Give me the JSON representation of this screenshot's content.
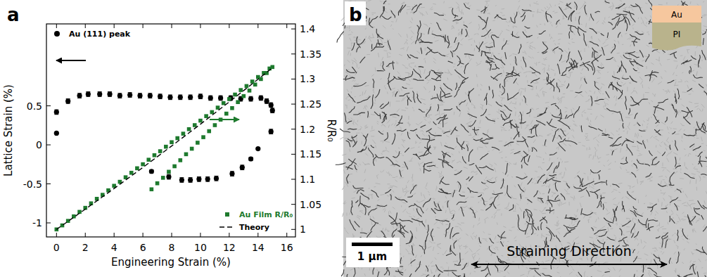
{
  "chart_data": {
    "type": "scatter",
    "title": "a",
    "xlabel": "Engineering Strain (%)",
    "ylabel": "Lattice Strain (%)",
    "y2label": "R/R₀",
    "xlim": [
      -0.7,
      16.6
    ],
    "xticks": [
      0,
      2,
      4,
      6,
      8,
      10,
      12,
      14,
      16
    ],
    "ylim": [
      -1.18,
      1.55
    ],
    "yticks": [
      -1,
      -0.5,
      0,
      0.5
    ],
    "y2lim": [
      0.985,
      1.41
    ],
    "y2ticks": [
      1,
      1.05,
      1.1,
      1.15,
      1.2,
      1.25,
      1.3,
      1.35,
      1.4
    ],
    "legend": "lower right",
    "series": [
      {
        "name": "Au (111) peak",
        "type": "scatter",
        "marker": "circle",
        "color": "#000000",
        "x": [
          0,
          0,
          0.8,
          1.6,
          2.2,
          3.0,
          3.7,
          4.4,
          5.1,
          5.8,
          6.5,
          7.2,
          7.9,
          8.6,
          9.3,
          10.0,
          10.7,
          11.4,
          12.1,
          12.8,
          13.5,
          14.2,
          14.6,
          14.9,
          15.0,
          14.9,
          14.0,
          13.5,
          12.9,
          12.2,
          11.1,
          10.5,
          9.9,
          9.3,
          8.7,
          7.8,
          6.6
        ],
        "values": [
          0.15,
          0.42,
          0.56,
          0.63,
          0.65,
          0.65,
          0.65,
          0.63,
          0.64,
          0.63,
          0.63,
          0.62,
          0.61,
          0.61,
          0.61,
          0.62,
          0.6,
          0.6,
          0.6,
          0.59,
          0.59,
          0.6,
          0.56,
          0.51,
          0.44,
          0.17,
          -0.05,
          -0.18,
          -0.29,
          -0.37,
          -0.43,
          -0.44,
          -0.44,
          -0.45,
          -0.45,
          -0.41,
          -0.34
        ],
        "errors": [
          0.01,
          0.03,
          0.03,
          0.03,
          0.03,
          0.03,
          0.03,
          0.03,
          0.03,
          0.03,
          0.03,
          0.03,
          0.03,
          0.03,
          0.03,
          0.03,
          0.03,
          0.03,
          0.03,
          0.03,
          0.03,
          0.03,
          0.03,
          0.03,
          0.03,
          0.03,
          0.01,
          0.02,
          0.03,
          0.03,
          0.03,
          0.03,
          0.03,
          0.03,
          0.03,
          0.03,
          0.02
        ]
      },
      {
        "name": "Au Film R/R₀",
        "type": "scatter",
        "marker": "square",
        "color": "#1e7a2e",
        "axis": "y2",
        "x": [
          0,
          0.4,
          0.8,
          1.2,
          1.6,
          2,
          2.4,
          2.8,
          3.2,
          3.6,
          4,
          4.4,
          4.8,
          5.2,
          5.6,
          6,
          6.4,
          6.8,
          7.2,
          7.6,
          8,
          8.4,
          8.8,
          9.2,
          9.6,
          10,
          10.4,
          10.8,
          11.2,
          11.6,
          12,
          12.4,
          12.8,
          13.2,
          13.6,
          14,
          14.4,
          14.8,
          15,
          14.6,
          14.2,
          13.8,
          13.4,
          13.0,
          12.6,
          12.2,
          11.8,
          11.4,
          11.0,
          10.6,
          10.2,
          9.8,
          9.4,
          9.0,
          8.6,
          8.2,
          7.8,
          7.4,
          7.0,
          6.6
        ],
        "values": [
          1.0,
          1.008,
          1.017,
          1.026,
          1.035,
          1.043,
          1.052,
          1.061,
          1.069,
          1.078,
          1.087,
          1.095,
          1.104,
          1.113,
          1.122,
          1.13,
          1.139,
          1.148,
          1.156,
          1.165,
          1.174,
          1.182,
          1.191,
          1.2,
          1.208,
          1.217,
          1.226,
          1.234,
          1.243,
          1.252,
          1.26,
          1.269,
          1.278,
          1.286,
          1.295,
          1.304,
          1.312,
          1.321,
          1.324,
          1.312,
          1.3,
          1.289,
          1.277,
          1.266,
          1.254,
          1.242,
          1.231,
          1.219,
          1.208,
          1.196,
          1.184,
          1.173,
          1.161,
          1.15,
          1.138,
          1.126,
          1.115,
          1.103,
          1.092,
          1.08
        ]
      },
      {
        "name": "Theory",
        "type": "line",
        "line_style": "dashed",
        "color": "#000000",
        "axis": "y2",
        "x": [
          0,
          2,
          4,
          6,
          8,
          10,
          12,
          14,
          15
        ],
        "values": [
          1,
          1.0404,
          1.0816,
          1.1236,
          1.1664,
          1.21,
          1.2544,
          1.2996,
          1.3225
        ]
      }
    ]
  },
  "micrograph": {
    "label": "b",
    "layers": [
      "Au",
      "PI"
    ],
    "scale_bar": "1 µm",
    "annotation": "Straining Direction"
  }
}
